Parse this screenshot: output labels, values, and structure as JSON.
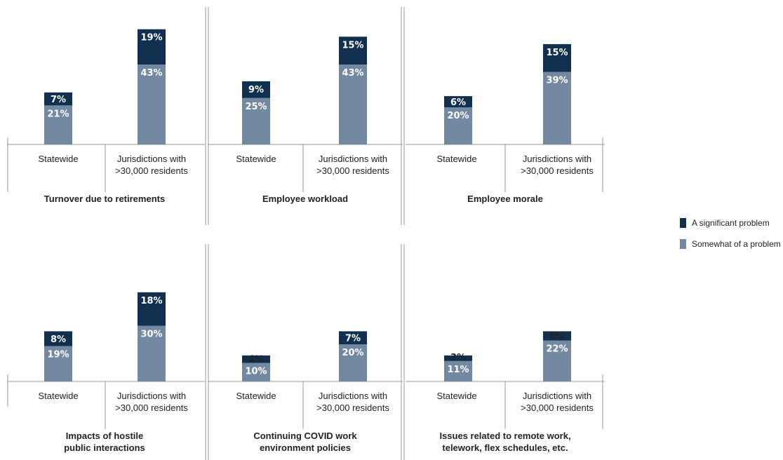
{
  "colors": {
    "significant": "#112f4e",
    "somewhat": "#7389a2",
    "axis": "#999999"
  },
  "legend": [
    {
      "label": "A significant problem",
      "color": "#112f4e"
    },
    {
      "label": "Somewhat of a problem",
      "color": "#7389a2"
    }
  ],
  "chart_data": {
    "type": "bar",
    "stacked": true,
    "series_names": [
      "Somewhat of a problem",
      "A significant problem"
    ],
    "categories": [
      "Statewide",
      "Jurisdictions with\n>30,000 residents"
    ],
    "panels": [
      {
        "title": "Turnover due to retirements",
        "values": [
          {
            "somewhat": 21,
            "significant": 7
          },
          {
            "somewhat": 43,
            "significant": 19
          }
        ]
      },
      {
        "title": "Employee workload",
        "values": [
          {
            "somewhat": 25,
            "significant": 9
          },
          {
            "somewhat": 43,
            "significant": 15
          }
        ]
      },
      {
        "title": "Employee morale",
        "values": [
          {
            "somewhat": 20,
            "significant": 6
          },
          {
            "somewhat": 39,
            "significant": 15
          }
        ]
      },
      {
        "title": "Impacts of hostile\npublic interactions",
        "values": [
          {
            "somewhat": 19,
            "significant": 8
          },
          {
            "somewhat": 30,
            "significant": 18
          }
        ]
      },
      {
        "title": "Continuing COVID work\nenvironment policies",
        "values": [
          {
            "somewhat": 10,
            "significant": 4
          },
          {
            "somewhat": 20,
            "significant": 7
          }
        ]
      },
      {
        "title": "Issues related to remote work,\ntelework, flex schedules, etc.",
        "values": [
          {
            "somewhat": 11,
            "significant": 3
          },
          {
            "somewhat": 22,
            "significant": 5
          }
        ]
      }
    ],
    "legend_position": "right",
    "grid": false
  }
}
